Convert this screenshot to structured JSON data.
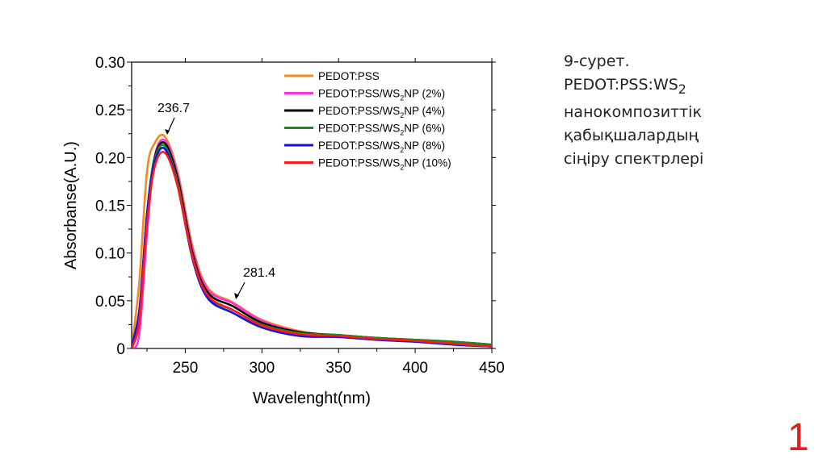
{
  "chart_data": {
    "type": "line",
    "title": "",
    "xlabel": "Wavelenght(nm)",
    "ylabel": "Absorbanse(A.U.)",
    "xlim": [
      215,
      450
    ],
    "ylim": [
      0,
      0.3
    ],
    "xticks": [
      250,
      300,
      350,
      400,
      450
    ],
    "yticks": [
      0,
      0.05,
      0.1,
      0.15,
      0.2,
      0.25,
      0.3
    ],
    "ytick_labels": [
      "0",
      "0.05",
      "0.10",
      "0.15",
      "0.20",
      "0.25",
      "0.30"
    ],
    "grid": false,
    "legend_position": "top-right",
    "x": [
      215,
      220,
      225,
      230,
      236.7,
      245,
      255,
      265,
      281.4,
      300,
      325,
      350,
      375,
      400,
      425,
      450
    ],
    "series": [
      {
        "name": "PEDOT:PSS",
        "color": "#f28a1e",
        "values": [
          0.0,
          0.07,
          0.185,
          0.215,
          0.222,
          0.185,
          0.105,
          0.063,
          0.048,
          0.03,
          0.018,
          0.013,
          0.01,
          0.008,
          0.006,
          0.003
        ]
      },
      {
        "name": "PEDOT:PSS/WS2NP (2%)",
        "color": "#ff2ee0",
        "values": [
          0.0,
          0.015,
          0.12,
          0.2,
          0.218,
          0.182,
          0.102,
          0.061,
          0.047,
          0.029,
          0.017,
          0.013,
          0.01,
          0.008,
          0.005,
          0.002
        ]
      },
      {
        "name": "PEDOT:PSS/WS2NP (4%)",
        "color": "#000000",
        "values": [
          0.0,
          0.03,
          0.14,
          0.2,
          0.215,
          0.178,
          0.098,
          0.058,
          0.044,
          0.027,
          0.017,
          0.014,
          0.011,
          0.009,
          0.007,
          0.004
        ]
      },
      {
        "name": "PEDOT:PSS/WS2NP (6%)",
        "color": "#1a8a1a",
        "values": [
          0.0,
          0.035,
          0.14,
          0.198,
          0.212,
          0.174,
          0.094,
          0.054,
          0.04,
          0.025,
          0.016,
          0.014,
          0.011,
          0.009,
          0.007,
          0.004
        ]
      },
      {
        "name": "PEDOT:PSS/WS2NP (8%)",
        "color": "#1010e0",
        "values": [
          0.003,
          0.04,
          0.14,
          0.195,
          0.209,
          0.17,
          0.092,
          0.052,
          0.037,
          0.022,
          0.013,
          0.012,
          0.009,
          0.007,
          0.004,
          0.002
        ]
      },
      {
        "name": "PEDOT:PSS/WS2NP (10%)",
        "color": "#ff1a1a",
        "values": [
          0.0,
          0.03,
          0.13,
          0.19,
          0.205,
          0.17,
          0.094,
          0.055,
          0.04,
          0.024,
          0.015,
          0.013,
          0.01,
          0.008,
          0.005,
          0.002
        ]
      }
    ],
    "legend": [
      {
        "main": "PEDOT:PSS",
        "sub": "",
        "rest": ""
      },
      {
        "main": "PEDOT:PSS/WS",
        "sub": "2",
        "rest": "NP (2%)"
      },
      {
        "main": "PEDOT:PSS/WS",
        "sub": "2",
        "rest": "NP (4%)"
      },
      {
        "main": "PEDOT:PSS/WS",
        "sub": "2",
        "rest": "NP (6%)"
      },
      {
        "main": "PEDOT:PSS/WS",
        "sub": "2",
        "rest": "NP (8%)"
      },
      {
        "main": "PEDOT:PSS/WS",
        "sub": "2",
        "rest": "NP (10%)"
      }
    ],
    "annotations": [
      {
        "text": "236.7",
        "x": 236.7,
        "y": 0.222
      },
      {
        "text": "281.4",
        "x": 281.4,
        "y": 0.048
      }
    ]
  },
  "caption": {
    "line1": "9-сурет.",
    "line2_main": "PEDOT:PSS:WS",
    "line2_sub": "2",
    "line3": "нанокомпозиттік",
    "line4": "қабықшалардың",
    "line5": "сіңіру спектрлері"
  },
  "page_number": "1"
}
